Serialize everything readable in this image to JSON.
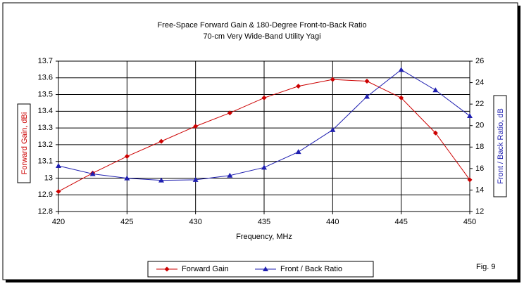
{
  "chart_data": {
    "type": "line",
    "title": "Free-Space Forward Gain & 180-Degree Front-to-Back Ratio",
    "subtitle": "70-cm Very Wide-Band Utility Yagi",
    "x_label": "Frequency, MHz",
    "y_label": "Forward Gain, dBi",
    "y2_label": "Front / Back Ratio, dB",
    "annotation": "Fig. 9",
    "x": [
      420,
      422.5,
      425,
      427.5,
      430,
      432.5,
      435,
      437.5,
      440,
      442.5,
      445,
      447.5,
      450
    ],
    "series": [
      {
        "name": "Forward Gain",
        "color": "#cc0000",
        "marker": "diamond",
        "values": [
          12.92,
          13.03,
          13.13,
          13.22,
          13.31,
          13.39,
          13.48,
          13.55,
          13.59,
          13.58,
          13.48,
          13.27,
          12.99
        ]
      },
      {
        "name": "Front / Back Ratio",
        "color": "#1f1fb0",
        "marker": "triangle",
        "axis": "y2",
        "values": [
          16.25,
          15.5,
          15.1,
          14.9,
          14.95,
          15.35,
          16.1,
          17.55,
          19.6,
          22.7,
          25.2,
          23.3,
          20.9
        ]
      }
    ],
    "xlim": [
      420,
      450
    ],
    "xticks": [
      420,
      425,
      430,
      435,
      440,
      445,
      450
    ],
    "ylim": [
      12.8,
      13.7
    ],
    "yticks": [
      12.8,
      12.9,
      13,
      13.1,
      13.2,
      13.3,
      13.4,
      13.5,
      13.6,
      13.7
    ],
    "y2lim": [
      12,
      26
    ],
    "y2ticks": [
      12,
      14,
      16,
      18,
      20,
      22,
      24,
      26
    ],
    "grid": true,
    "legend": "bottom"
  }
}
